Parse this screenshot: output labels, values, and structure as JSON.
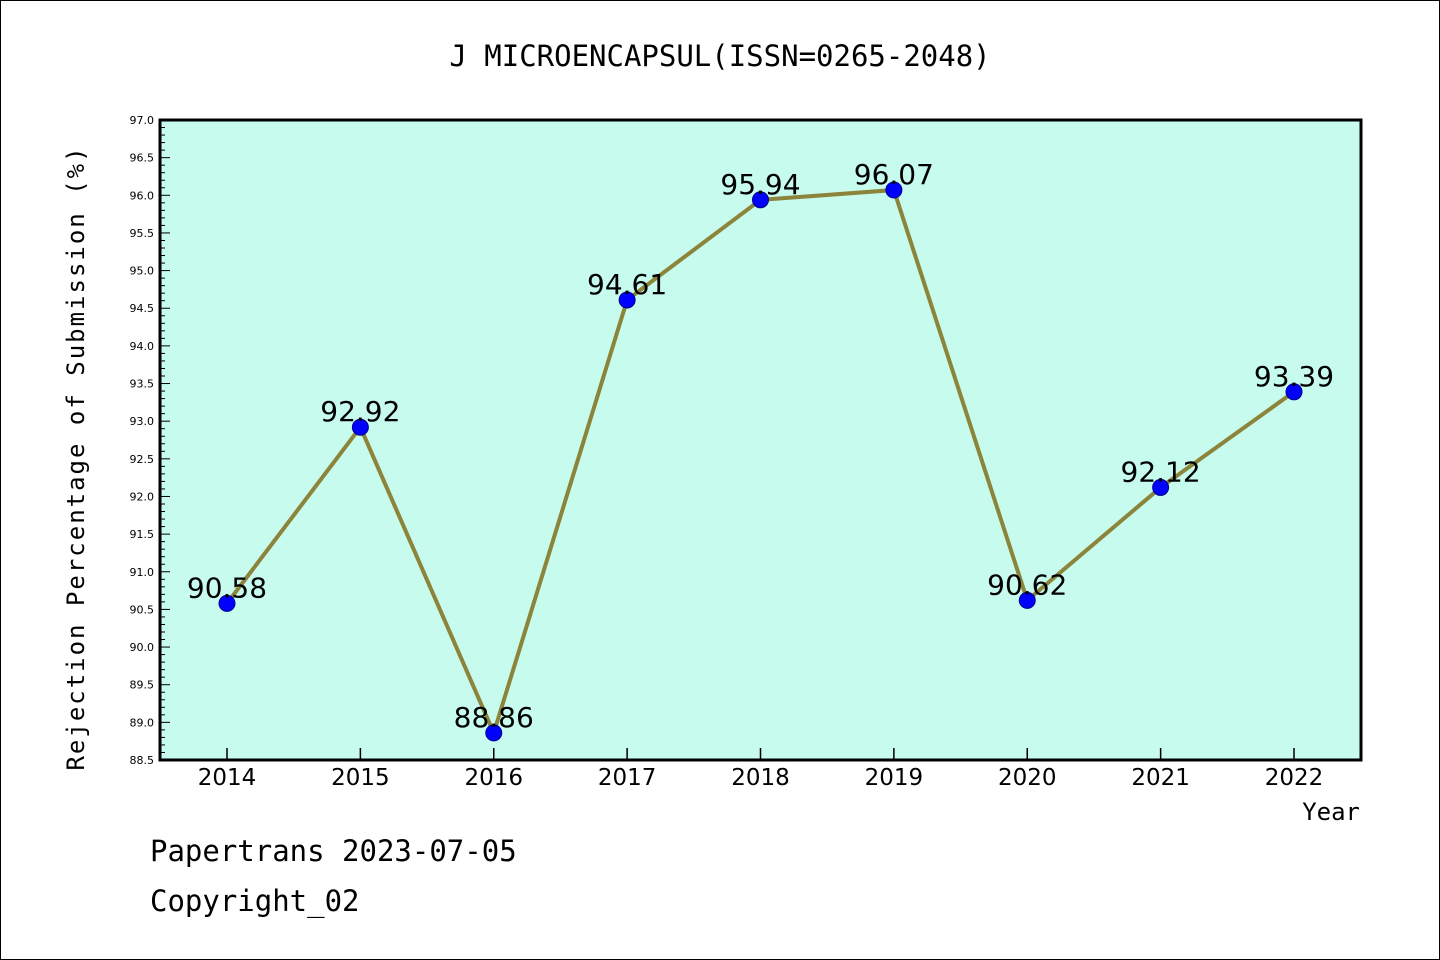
{
  "footer": {
    "line1": "Papertrans 2023-07-05",
    "line2": "Copyright_02"
  },
  "chart_data": {
    "type": "line",
    "title": "J MICROENCAPSUL(ISSN=0265-2048)",
    "xlabel": "Year",
    "ylabel": "Rejection Percentage of Submission (%)",
    "categories": [
      "2014",
      "2015",
      "2016",
      "2017",
      "2018",
      "2019",
      "2020",
      "2021",
      "2022"
    ],
    "values": [
      90.58,
      92.92,
      88.86,
      94.61,
      95.94,
      96.07,
      90.62,
      92.12,
      93.39
    ],
    "data_labels": [
      "90.58",
      "92.92",
      "88.86",
      "94.61",
      "95.94",
      "96.07",
      "90.62",
      "92.12",
      "93.39"
    ],
    "ylim": [
      88.5,
      97.0
    ],
    "yticks": [
      "88.5",
      "89.0",
      "89.5",
      "90.0",
      "90.5",
      "91.0",
      "91.5",
      "92.0",
      "92.5",
      "93.0",
      "93.5",
      "94.0",
      "94.5",
      "95.0",
      "95.5",
      "96.0",
      "96.5",
      "97.0"
    ],
    "colors": {
      "plot_background": "#c6fbed",
      "line": "#8b843a",
      "marker": "#0000ff"
    },
    "grid": false,
    "legend": "none"
  }
}
